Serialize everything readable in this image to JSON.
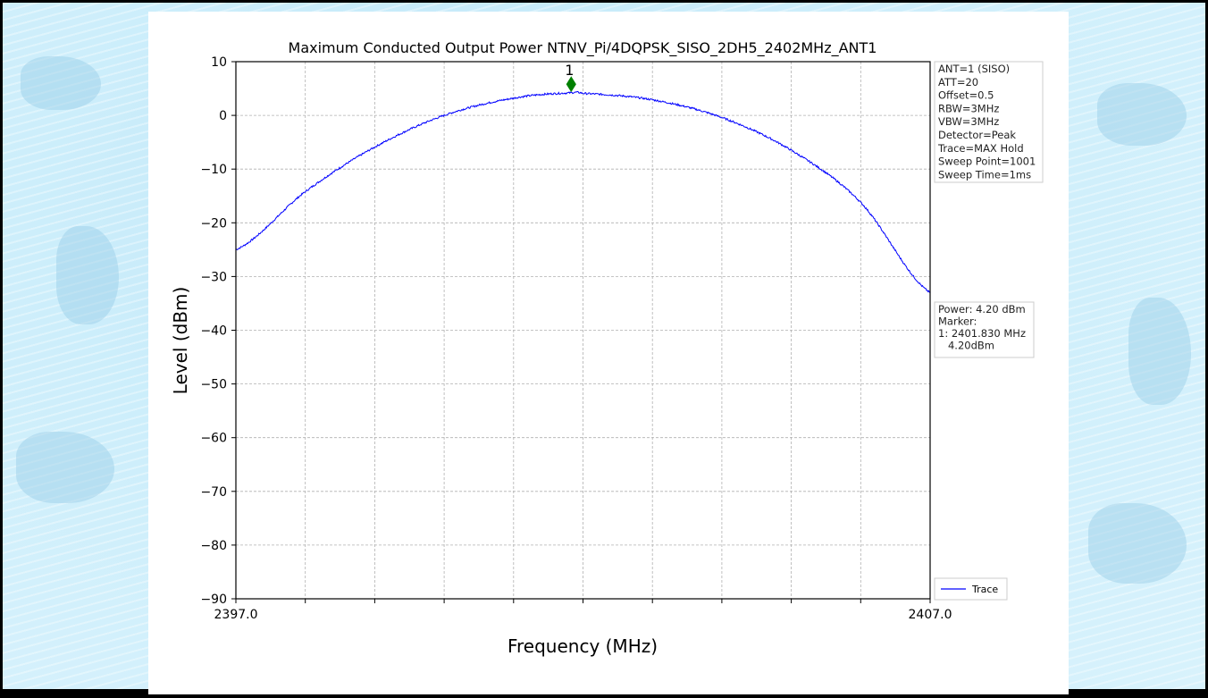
{
  "chart_data": {
    "type": "line",
    "title": "Maximum Conducted Output Power NTNV_Pi/4DQPSK_SISO_2DH5_2402MHz_ANT1",
    "xlabel": "Frequency (MHz)",
    "ylabel": "Level (dBm)",
    "xlim": [
      2397.0,
      2407.0
    ],
    "ylim": [
      -90,
      10
    ],
    "x_tick_labels": [
      "2397.0",
      "2407.0"
    ],
    "y_ticks": [
      10,
      0,
      -10,
      -20,
      -30,
      -40,
      -50,
      -60,
      -70,
      -80,
      -90
    ],
    "y_tick_labels": [
      "10",
      "0",
      "−10",
      "−20",
      "−30",
      "−40",
      "−50",
      "−60",
      "−70",
      "−80",
      "−90"
    ],
    "grid": true,
    "legend_position": "lower-right",
    "series": [
      {
        "name": "Trace",
        "color": "#0000ff",
        "x": [
          2397.0,
          2398.0,
          2399.0,
          2400.0,
          2401.0,
          2401.83,
          2402.0,
          2403.0,
          2404.0,
          2405.0,
          2406.0,
          2407.0
        ],
        "y": [
          -25.0,
          -14.2,
          -5.9,
          0.0,
          3.2,
          4.2,
          4.1,
          2.9,
          -0.4,
          -6.5,
          -16.2,
          -33.0
        ]
      }
    ],
    "marker": {
      "label": "1",
      "x": 2401.83,
      "y": 5.8,
      "color": "#008000"
    },
    "info_box": [
      "ANT=1 (SISO)",
      "ATT=20",
      "Offset=0.5",
      "RBW=3MHz",
      "VBW=3MHz",
      "Detector=Peak",
      "Trace=MAX Hold",
      "Sweep Point=1001",
      "Sweep Time=1ms"
    ],
    "power_box": [
      "Power: 4.20 dBm",
      "Marker:",
      "1: 2401.830 MHz",
      "   4.20dBm"
    ]
  }
}
